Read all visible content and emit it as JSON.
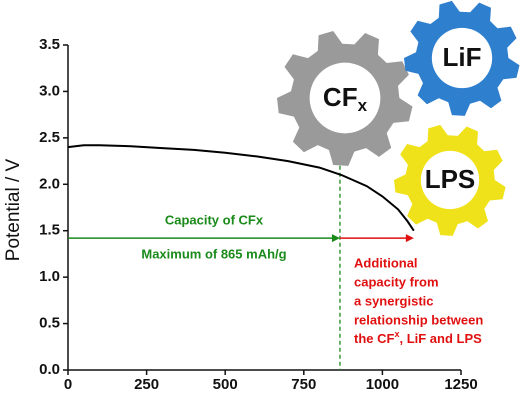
{
  "chart_data": {
    "type": "line",
    "y_label": "Potential / V",
    "xlim": [
      0,
      1250
    ],
    "ylim": [
      0,
      3.5
    ],
    "xticks": [
      0,
      250,
      500,
      750,
      1000,
      1250
    ],
    "yticks": [
      {
        "value": 0,
        "label": "0.0"
      },
      0.5,
      {
        "value": 1,
        "label": "1.0"
      },
      1.5,
      {
        "value": 2,
        "label": "2.0"
      },
      2.5,
      {
        "value": 3,
        "label": "3.0"
      },
      3.5
    ],
    "series": [
      {
        "color": "#000000",
        "x": [
          0,
          50,
          100,
          200,
          300,
          400,
          500,
          600,
          700,
          800,
          870,
          950,
          1000,
          1050,
          1080,
          1100
        ],
        "values": [
          2.4,
          2.42,
          2.42,
          2.41,
          2.39,
          2.37,
          2.34,
          2.3,
          2.25,
          2.18,
          2.1,
          1.98,
          1.87,
          1.73,
          1.6,
          1.5
        ]
      }
    ],
    "capacity_marker": {
      "x": 865,
      "arrow_y": 1.42,
      "arrow_end": 1100,
      "color": "#1a8a1a",
      "extra_color": "#e01010",
      "label_top": "Capacity of CFx",
      "label_bottom": "Maximum of 865 mAh/g"
    },
    "extra_note": {
      "lines": [
        "Additional",
        "capacity from",
        "a synergistic",
        "relationship between"
      ],
      "last": [
        "the CF",
        "x",
        ", LiF and LPS"
      ]
    },
    "gears": [
      {
        "label": "CF",
        "sub": "x",
        "color": "#9a9a9a"
      },
      {
        "label": "LiF",
        "color": "#2f7fcf"
      },
      {
        "label": "LPS",
        "color": "#f0e21a"
      }
    ]
  }
}
